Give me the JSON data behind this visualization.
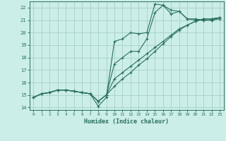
{
  "xlabel": "Humidex (Indice chaleur)",
  "bg_color": "#cceee8",
  "grid_color": "#aad4cc",
  "line_color": "#2a7060",
  "xlim": [
    -0.5,
    23.5
  ],
  "ylim": [
    13.8,
    22.5
  ],
  "xticks": [
    0,
    1,
    2,
    3,
    4,
    5,
    6,
    7,
    8,
    9,
    10,
    11,
    12,
    13,
    14,
    15,
    16,
    17,
    18,
    19,
    20,
    21,
    22,
    23
  ],
  "yticks": [
    14,
    15,
    16,
    17,
    18,
    19,
    20,
    21,
    22
  ],
  "series": [
    {
      "x": [
        0,
        1,
        2,
        3,
        4,
        5,
        6,
        7,
        8,
        9,
        10,
        11,
        12,
        13,
        14,
        15,
        16,
        17,
        18,
        19,
        20,
        21,
        22,
        23
      ],
      "y": [
        14.8,
        15.1,
        15.2,
        15.4,
        15.4,
        15.3,
        15.2,
        15.1,
        14.1,
        14.8,
        19.3,
        19.5,
        20.0,
        19.9,
        20.0,
        22.3,
        22.2,
        21.5,
        21.7,
        21.1,
        21.1,
        21.0,
        21.0,
        21.1
      ]
    },
    {
      "x": [
        0,
        1,
        2,
        3,
        4,
        5,
        6,
        7,
        8,
        9,
        10,
        11,
        12,
        13,
        14,
        15,
        16,
        17,
        18,
        19,
        20,
        21,
        22,
        23
      ],
      "y": [
        14.8,
        15.1,
        15.2,
        15.4,
        15.4,
        15.3,
        15.2,
        15.1,
        14.5,
        15.0,
        17.5,
        18.0,
        18.5,
        18.5,
        19.5,
        21.6,
        22.2,
        21.8,
        21.7,
        21.1,
        21.0,
        21.0,
        21.0,
        21.2
      ]
    },
    {
      "x": [
        0,
        1,
        2,
        3,
        4,
        5,
        6,
        7,
        8,
        9,
        10,
        11,
        12,
        13,
        14,
        15,
        16,
        17,
        18,
        19,
        20,
        21,
        22,
        23
      ],
      "y": [
        14.8,
        15.1,
        15.2,
        15.4,
        15.4,
        15.3,
        15.2,
        15.1,
        14.5,
        15.0,
        16.3,
        16.8,
        17.3,
        17.8,
        18.3,
        18.8,
        19.3,
        19.8,
        20.3,
        20.6,
        20.9,
        21.1,
        21.1,
        21.2
      ]
    },
    {
      "x": [
        0,
        1,
        2,
        3,
        4,
        5,
        6,
        7,
        8,
        9,
        10,
        11,
        12,
        13,
        14,
        15,
        16,
        17,
        18,
        19,
        20,
        21,
        22,
        23
      ],
      "y": [
        14.8,
        15.1,
        15.2,
        15.4,
        15.4,
        15.3,
        15.2,
        15.1,
        14.5,
        15.0,
        15.7,
        16.3,
        16.8,
        17.4,
        17.9,
        18.5,
        19.1,
        19.7,
        20.2,
        20.6,
        20.9,
        21.1,
        21.1,
        21.2
      ]
    }
  ]
}
